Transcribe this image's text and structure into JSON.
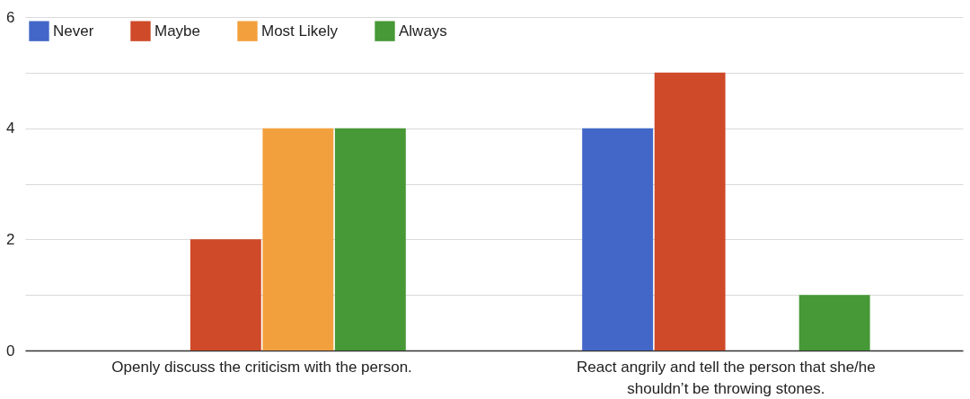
{
  "chart_data": {
    "type": "bar",
    "categories": [
      "Openly discuss the criticism with the person.",
      "React angrily and tell the person that she/he shouldn’t be throwing stones."
    ],
    "series": [
      {
        "name": "Never",
        "color": "#4267c8",
        "values": [
          0,
          4
        ]
      },
      {
        "name": "Maybe",
        "color": "#cf4a29",
        "values": [
          2,
          5
        ]
      },
      {
        "name": "Most Likely",
        "color": "#f2a03d",
        "values": [
          4,
          0
        ]
      },
      {
        "name": "Always",
        "color": "#479836",
        "values": [
          4,
          1
        ]
      }
    ],
    "ylim": [
      0,
      6
    ],
    "yticks": [
      0,
      {
        "value": 1,
        "label": null
      },
      2,
      {
        "value": 3,
        "label": null
      },
      4,
      {
        "value": 5,
        "label": null
      },
      6
    ],
    "grid": true,
    "legend": "top left"
  }
}
